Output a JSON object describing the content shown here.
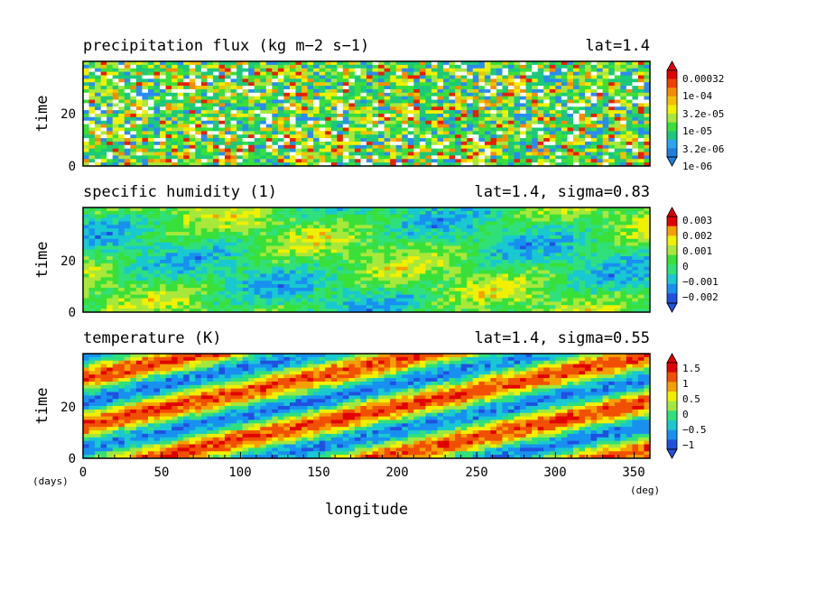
{
  "figure": {
    "xlabel": "longitude",
    "x_unit": "(deg)",
    "y_unit": "(days)"
  },
  "colors": {
    "levels10": [
      "#1f7fe0",
      "#2aa6f0",
      "#1cc97a",
      "#39e039",
      "#a8e83a",
      "#f0f000",
      "#f5c000",
      "#f58c00",
      "#f04000",
      "#e00000"
    ],
    "temp": [
      "#2050e0",
      "#1890f0",
      "#19c8d0",
      "#30e07a",
      "#a0e840",
      "#f0f000",
      "#f5a000",
      "#f05000",
      "#e00000"
    ]
  },
  "chart_data": [
    {
      "id": "precip",
      "type": "heatmap",
      "title": "precipitation flux (kg m−2 s−1)",
      "subtitle": "lat=1.4",
      "ylabel": "time",
      "xlim": [
        0,
        360
      ],
      "ylim": [
        0,
        40
      ],
      "yticks": [
        0,
        20
      ],
      "colorbar_labels": [
        "0.00032",
        "1e-04",
        "3.2e-05",
        "1e-05",
        "3.2e-06",
        "1e-06"
      ],
      "colorbar_scale": "log",
      "pattern": "noise"
    },
    {
      "id": "humidity",
      "type": "heatmap",
      "title": "specific humidity (1)",
      "subtitle": "lat=1.4, sigma=0.83",
      "ylabel": "time",
      "xlim": [
        0,
        360
      ],
      "ylim": [
        0,
        40
      ],
      "yticks": [
        0,
        20
      ],
      "colorbar_labels": [
        "0.003",
        "0.002",
        "0.001",
        "0",
        "−0.001",
        "−0.002"
      ],
      "pattern": "smooth"
    },
    {
      "id": "temperature",
      "type": "heatmap",
      "title": "temperature (K)",
      "subtitle": "lat=1.4, sigma=0.55",
      "ylabel": "time",
      "xlim": [
        0,
        360
      ],
      "ylim": [
        0,
        40
      ],
      "yticks": [
        0,
        20
      ],
      "xticks": [
        0,
        50,
        100,
        150,
        200,
        250,
        300,
        350
      ],
      "colorbar_labels": [
        "1.5",
        "1",
        "0.5",
        "0",
        "−0.5",
        "−1"
      ],
      "pattern": "bands"
    }
  ]
}
